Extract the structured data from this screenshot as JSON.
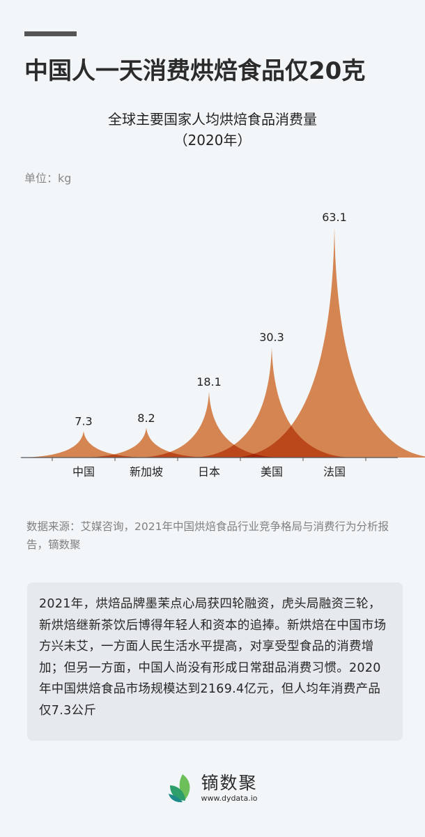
{
  "header": {
    "title": "中国人一天消费烘焙食品仅20克"
  },
  "chart": {
    "title_line1": "全球主要国家人均烘焙食品消费量",
    "title_line2": "（2020年）",
    "unit_label": "单位：kg"
  },
  "chart_data": {
    "type": "area",
    "title": "全球主要国家人均烘焙食品消费量（2020年）",
    "xlabel": "",
    "ylabel": "单位：kg",
    "categories": [
      "中国",
      "新加坡",
      "日本",
      "美国",
      "法国"
    ],
    "values": [
      7.3,
      8.2,
      18.1,
      30.3,
      63.1
    ],
    "value_labels": [
      "7.3",
      "8.2",
      "18.1",
      "30.3",
      "63.1"
    ],
    "ylim": [
      0,
      63.1
    ],
    "grid": false,
    "legend": "none",
    "style": "spike-shaped overlapping areas (pictorial peaks)",
    "color": "#dd8044"
  },
  "source": {
    "text": "数据来源：艾媒咨询，2021年中国烘焙食品行业竞争格局与消费行为分析报告，镝数聚"
  },
  "summary": {
    "text": "2021年，烘焙品牌墨茉点心局获四轮融资，虎头局融资三轮，新烘焙继新茶饮后博得年轻人和资本的追捧。新烘焙在中国市场方兴未艾，一方面人民生活水平提高，对享受型食品的消费增加；但另一方面，中国人尚没有形成日常甜品消费习惯。2020年中国烘焙食品市场规模达到2169.4亿元，但人均年消费产品仅7.3公斤"
  },
  "footer": {
    "brand": "镝数聚",
    "url": "www.dydata.io"
  },
  "colors": {
    "background": "#f3f6f9",
    "peak_fill": "#dd8044",
    "overlap_fill": "#d5621c",
    "title": "#2b2b2b",
    "muted_text": "#808080",
    "summary_bg": "#e6e9ed",
    "logo_green_dark": "#2e9e6a",
    "logo_green_light": "#6cbf59",
    "logo_teal": "#1f8a8a"
  }
}
